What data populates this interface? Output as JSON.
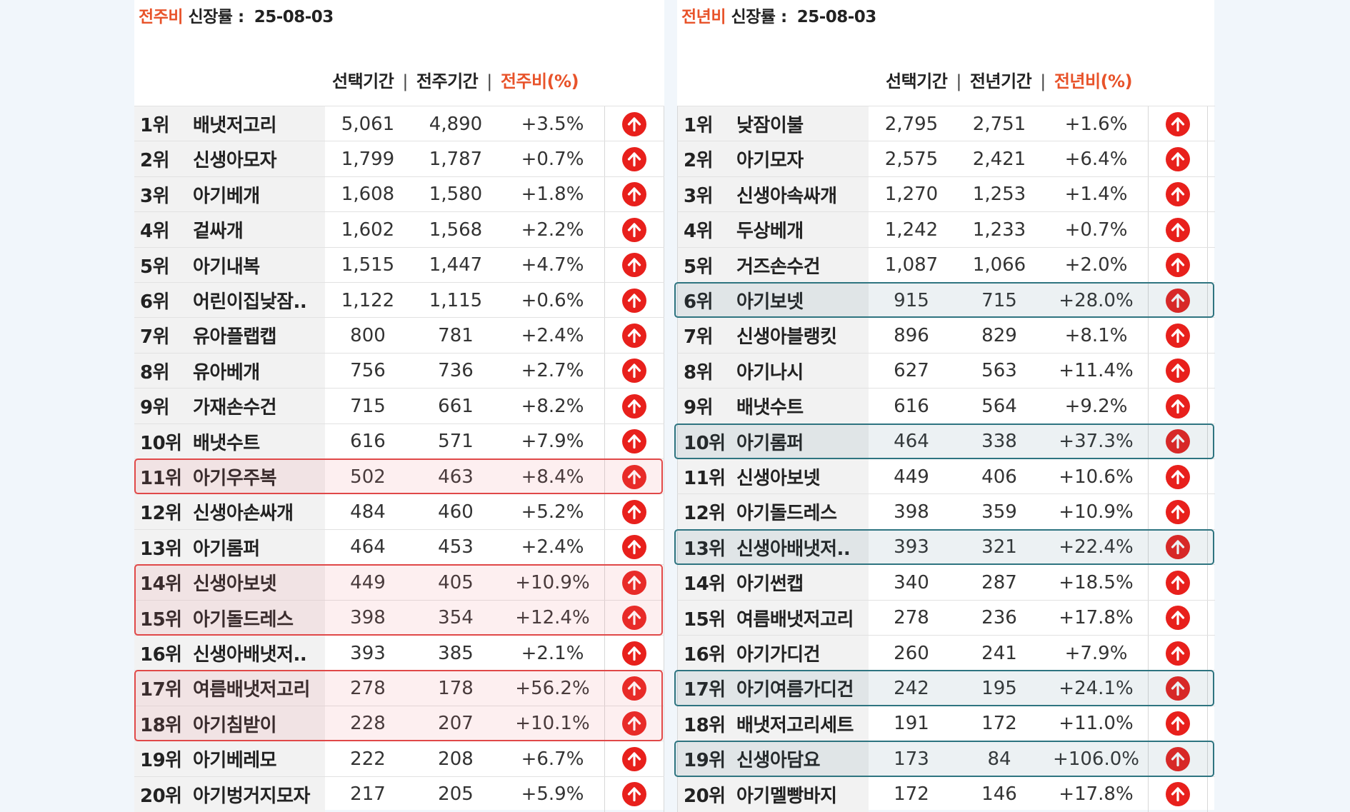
{
  "left": {
    "title_accent": "전주비",
    "title_rest": " 신장률  :",
    "date": "25-08-03",
    "headers": {
      "sel": "선택기간",
      "sep": "|",
      "prev": "전주기간",
      "pct": "전주비(%)"
    },
    "rows": [
      {
        "rank": "1위",
        "keyword": "배냇저고리",
        "selected": "5,061",
        "previous": "4,890",
        "change": "+3.5%"
      },
      {
        "rank": "2위",
        "keyword": "신생아모자",
        "selected": "1,799",
        "previous": "1,787",
        "change": "+0.7%"
      },
      {
        "rank": "3위",
        "keyword": "아기베개",
        "selected": "1,608",
        "previous": "1,580",
        "change": "+1.8%"
      },
      {
        "rank": "4위",
        "keyword": "겉싸개",
        "selected": "1,602",
        "previous": "1,568",
        "change": "+2.2%"
      },
      {
        "rank": "5위",
        "keyword": "아기내복",
        "selected": "1,515",
        "previous": "1,447",
        "change": "+4.7%"
      },
      {
        "rank": "6위",
        "keyword": "어린이집낮잠..",
        "selected": "1,122",
        "previous": "1,115",
        "change": "+0.6%"
      },
      {
        "rank": "7위",
        "keyword": "유아플랩캡",
        "selected": "800",
        "previous": "781",
        "change": "+2.4%"
      },
      {
        "rank": "8위",
        "keyword": "유아베개",
        "selected": "756",
        "previous": "736",
        "change": "+2.7%"
      },
      {
        "rank": "9위",
        "keyword": "가재손수건",
        "selected": "715",
        "previous": "661",
        "change": "+8.2%"
      },
      {
        "rank": "10위",
        "keyword": "배냇수트",
        "selected": "616",
        "previous": "571",
        "change": "+7.9%"
      },
      {
        "rank": "11위",
        "keyword": "아기우주복",
        "selected": "502",
        "previous": "463",
        "change": "+8.4%"
      },
      {
        "rank": "12위",
        "keyword": "신생아손싸개",
        "selected": "484",
        "previous": "460",
        "change": "+5.2%"
      },
      {
        "rank": "13위",
        "keyword": "아기롬퍼",
        "selected": "464",
        "previous": "453",
        "change": "+2.4%"
      },
      {
        "rank": "14위",
        "keyword": "신생아보넷",
        "selected": "449",
        "previous": "405",
        "change": "+10.9%"
      },
      {
        "rank": "15위",
        "keyword": "아기돌드레스",
        "selected": "398",
        "previous": "354",
        "change": "+12.4%"
      },
      {
        "rank": "16위",
        "keyword": "신생아배냇저..",
        "selected": "393",
        "previous": "385",
        "change": "+2.1%"
      },
      {
        "rank": "17위",
        "keyword": "여름배냇저고리",
        "selected": "278",
        "previous": "178",
        "change": "+56.2%"
      },
      {
        "rank": "18위",
        "keyword": "아기침받이",
        "selected": "228",
        "previous": "207",
        "change": "+10.1%"
      },
      {
        "rank": "19위",
        "keyword": "아기베레모",
        "selected": "222",
        "previous": "208",
        "change": "+6.7%"
      },
      {
        "rank": "20위",
        "keyword": "아기벙거지모자",
        "selected": "217",
        "previous": "205",
        "change": "+5.9%"
      }
    ],
    "highlights": [
      [
        11,
        11
      ],
      [
        14,
        15
      ],
      [
        17,
        18
      ]
    ]
  },
  "right": {
    "title_accent": "전년비",
    "title_rest": " 신장률 :",
    "date": "25-08-03",
    "headers": {
      "sel": "선택기간",
      "sep": "|",
      "prev": "전년기간",
      "pct": "전년비(%)"
    },
    "rows": [
      {
        "rank": "1위",
        "keyword": "낮잠이불",
        "selected": "2,795",
        "previous": "2,751",
        "change": "+1.6%"
      },
      {
        "rank": "2위",
        "keyword": "아기모자",
        "selected": "2,575",
        "previous": "2,421",
        "change": "+6.4%"
      },
      {
        "rank": "3위",
        "keyword": "신생아속싸개",
        "selected": "1,270",
        "previous": "1,253",
        "change": "+1.4%"
      },
      {
        "rank": "4위",
        "keyword": "두상베개",
        "selected": "1,242",
        "previous": "1,233",
        "change": "+0.7%"
      },
      {
        "rank": "5위",
        "keyword": "거즈손수건",
        "selected": "1,087",
        "previous": "1,066",
        "change": "+2.0%"
      },
      {
        "rank": "6위",
        "keyword": "아기보넷",
        "selected": "915",
        "previous": "715",
        "change": "+28.0%"
      },
      {
        "rank": "7위",
        "keyword": "신생아블랭킷",
        "selected": "896",
        "previous": "829",
        "change": "+8.1%"
      },
      {
        "rank": "8위",
        "keyword": "아기나시",
        "selected": "627",
        "previous": "563",
        "change": "+11.4%"
      },
      {
        "rank": "9위",
        "keyword": "배냇수트",
        "selected": "616",
        "previous": "564",
        "change": "+9.2%"
      },
      {
        "rank": "10위",
        "keyword": "아기롬퍼",
        "selected": "464",
        "previous": "338",
        "change": "+37.3%"
      },
      {
        "rank": "11위",
        "keyword": "신생아보넷",
        "selected": "449",
        "previous": "406",
        "change": "+10.6%"
      },
      {
        "rank": "12위",
        "keyword": "아기돌드레스",
        "selected": "398",
        "previous": "359",
        "change": "+10.9%"
      },
      {
        "rank": "13위",
        "keyword": "신생아배냇저..",
        "selected": "393",
        "previous": "321",
        "change": "+22.4%"
      },
      {
        "rank": "14위",
        "keyword": "아기썬캡",
        "selected": "340",
        "previous": "287",
        "change": "+18.5%"
      },
      {
        "rank": "15위",
        "keyword": "여름배냇저고리",
        "selected": "278",
        "previous": "236",
        "change": "+17.8%"
      },
      {
        "rank": "16위",
        "keyword": "아기가디건",
        "selected": "260",
        "previous": "241",
        "change": "+7.9%"
      },
      {
        "rank": "17위",
        "keyword": "아기여름가디건",
        "selected": "242",
        "previous": "195",
        "change": "+24.1%"
      },
      {
        "rank": "18위",
        "keyword": "배냇저고리세트",
        "selected": "191",
        "previous": "172",
        "change": "+11.0%"
      },
      {
        "rank": "19위",
        "keyword": "신생아담요",
        "selected": "173",
        "previous": "84",
        "change": "+106.0%"
      },
      {
        "rank": "20위",
        "keyword": "아기멜빵바지",
        "selected": "172",
        "previous": "146",
        "change": "+17.8%"
      }
    ],
    "highlights": [
      [
        6,
        6
      ],
      [
        10,
        10
      ],
      [
        13,
        13
      ],
      [
        17,
        17
      ],
      [
        19,
        19
      ]
    ]
  },
  "colors": {
    "accent": "#e8532a",
    "up_icon": "#e8201c",
    "highlight_red": "#e04848",
    "highlight_teal": "#2e7480"
  },
  "icons": {
    "row_trend": "arrow-up-circle-icon"
  }
}
